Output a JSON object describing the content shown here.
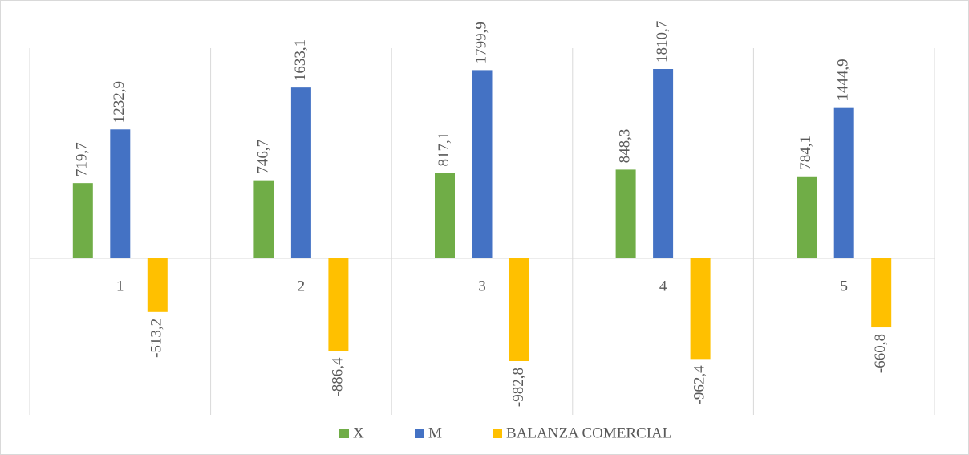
{
  "chart_data": {
    "type": "bar",
    "categories": [
      "1",
      "2",
      "3",
      "4",
      "5"
    ],
    "series": [
      {
        "name": "X",
        "color": "#70ad47",
        "values": [
          719.7,
          746.7,
          817.1,
          848.3,
          784.1
        ],
        "value_labels": [
          "719,7",
          "746,7",
          "817,1",
          "848,3",
          "784,1"
        ]
      },
      {
        "name": "M",
        "color": "#4472c4",
        "values": [
          1232.9,
          1633.1,
          1799.9,
          1810.7,
          1444.9
        ],
        "value_labels": [
          "1232,9",
          "1633,1",
          "1799,9",
          "1810,7",
          "1444,9"
        ]
      },
      {
        "name": "BALANZA COMERCIAL",
        "color": "#ffc000",
        "values": [
          -513.2,
          -886.4,
          -982.8,
          -962.4,
          -660.8
        ],
        "value_labels": [
          "-513,2",
          "-886,4",
          "-982,8",
          "-962,4",
          "-660,8"
        ]
      }
    ],
    "legend": "bottom"
  }
}
